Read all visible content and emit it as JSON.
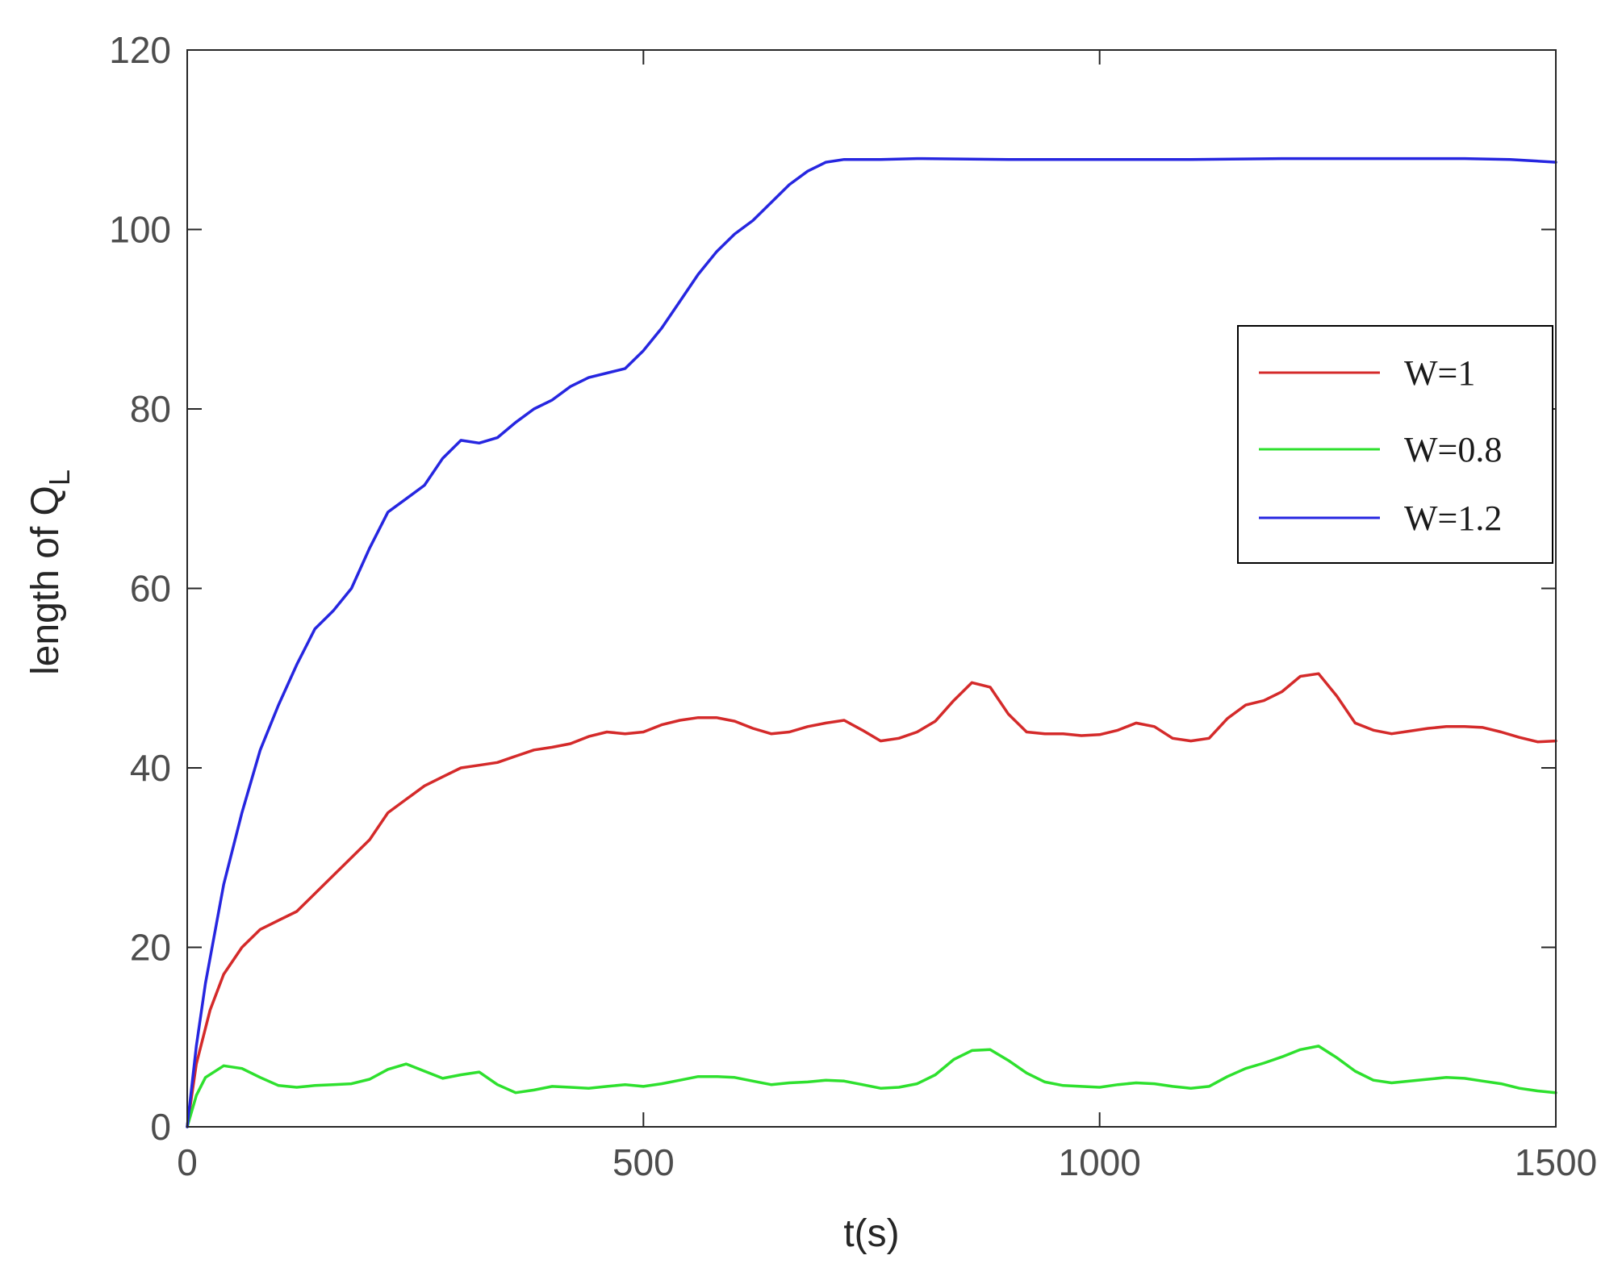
{
  "chart_data": {
    "type": "line",
    "xlabel": "t(s)",
    "ylabel_main": "length of Q",
    "ylabel_sub": "L",
    "xlim": [
      0,
      1500
    ],
    "ylim": [
      0,
      120
    ],
    "xticks": [
      0,
      500,
      1000,
      1500
    ],
    "yticks": [
      0,
      20,
      40,
      60,
      80,
      100,
      120
    ],
    "grid": false,
    "legend_position": "right, upper-middle",
    "series": [
      {
        "name": "W=1",
        "color": "#d42a2a",
        "points": [
          [
            0,
            0
          ],
          [
            10,
            7
          ],
          [
            25,
            13
          ],
          [
            40,
            17
          ],
          [
            60,
            20
          ],
          [
            80,
            22
          ],
          [
            100,
            23
          ],
          [
            120,
            24
          ],
          [
            140,
            26
          ],
          [
            160,
            28
          ],
          [
            180,
            30
          ],
          [
            200,
            32
          ],
          [
            220,
            35
          ],
          [
            240,
            36.5
          ],
          [
            260,
            38
          ],
          [
            280,
            39
          ],
          [
            300,
            40
          ],
          [
            320,
            40.3
          ],
          [
            340,
            40.6
          ],
          [
            360,
            41.3
          ],
          [
            380,
            42
          ],
          [
            400,
            42.3
          ],
          [
            420,
            42.7
          ],
          [
            440,
            43.5
          ],
          [
            460,
            44
          ],
          [
            480,
            43.8
          ],
          [
            500,
            44
          ],
          [
            520,
            44.8
          ],
          [
            540,
            45.3
          ],
          [
            560,
            45.6
          ],
          [
            580,
            45.6
          ],
          [
            600,
            45.2
          ],
          [
            620,
            44.4
          ],
          [
            640,
            43.8
          ],
          [
            660,
            44
          ],
          [
            680,
            44.6
          ],
          [
            700,
            45
          ],
          [
            720,
            45.3
          ],
          [
            740,
            44.2
          ],
          [
            760,
            43
          ],
          [
            780,
            43.3
          ],
          [
            800,
            44
          ],
          [
            820,
            45.2
          ],
          [
            840,
            47.5
          ],
          [
            860,
            49.5
          ],
          [
            880,
            49
          ],
          [
            900,
            46
          ],
          [
            920,
            44
          ],
          [
            940,
            43.8
          ],
          [
            960,
            43.8
          ],
          [
            980,
            43.6
          ],
          [
            1000,
            43.7
          ],
          [
            1020,
            44.2
          ],
          [
            1040,
            45
          ],
          [
            1060,
            44.6
          ],
          [
            1080,
            43.3
          ],
          [
            1100,
            43
          ],
          [
            1120,
            43.3
          ],
          [
            1140,
            45.5
          ],
          [
            1160,
            47
          ],
          [
            1180,
            47.5
          ],
          [
            1200,
            48.5
          ],
          [
            1220,
            50.2
          ],
          [
            1240,
            50.5
          ],
          [
            1260,
            48
          ],
          [
            1280,
            45
          ],
          [
            1300,
            44.2
          ],
          [
            1320,
            43.8
          ],
          [
            1340,
            44.1
          ],
          [
            1360,
            44.4
          ],
          [
            1380,
            44.6
          ],
          [
            1400,
            44.6
          ],
          [
            1420,
            44.5
          ],
          [
            1440,
            44
          ],
          [
            1460,
            43.4
          ],
          [
            1480,
            42.9
          ],
          [
            1500,
            43
          ]
        ]
      },
      {
        "name": "W=0.8",
        "color": "#2ee02e",
        "points": [
          [
            0,
            0
          ],
          [
            10,
            3.5
          ],
          [
            20,
            5.5
          ],
          [
            40,
            6.8
          ],
          [
            60,
            6.5
          ],
          [
            80,
            5.5
          ],
          [
            100,
            4.6
          ],
          [
            120,
            4.4
          ],
          [
            140,
            4.6
          ],
          [
            160,
            4.7
          ],
          [
            180,
            4.8
          ],
          [
            200,
            5.3
          ],
          [
            220,
            6.4
          ],
          [
            240,
            7
          ],
          [
            260,
            6.2
          ],
          [
            280,
            5.4
          ],
          [
            300,
            5.8
          ],
          [
            320,
            6.1
          ],
          [
            340,
            4.7
          ],
          [
            360,
            3.8
          ],
          [
            380,
            4.1
          ],
          [
            400,
            4.5
          ],
          [
            420,
            4.4
          ],
          [
            440,
            4.3
          ],
          [
            460,
            4.5
          ],
          [
            480,
            4.7
          ],
          [
            500,
            4.5
          ],
          [
            520,
            4.8
          ],
          [
            540,
            5.2
          ],
          [
            560,
            5.6
          ],
          [
            580,
            5.6
          ],
          [
            600,
            5.5
          ],
          [
            620,
            5.1
          ],
          [
            640,
            4.7
          ],
          [
            660,
            4.9
          ],
          [
            680,
            5
          ],
          [
            700,
            5.2
          ],
          [
            720,
            5.1
          ],
          [
            740,
            4.7
          ],
          [
            760,
            4.3
          ],
          [
            780,
            4.4
          ],
          [
            800,
            4.8
          ],
          [
            820,
            5.8
          ],
          [
            840,
            7.5
          ],
          [
            860,
            8.5
          ],
          [
            880,
            8.6
          ],
          [
            900,
            7.4
          ],
          [
            920,
            6
          ],
          [
            940,
            5
          ],
          [
            960,
            4.6
          ],
          [
            980,
            4.5
          ],
          [
            1000,
            4.4
          ],
          [
            1020,
            4.7
          ],
          [
            1040,
            4.9
          ],
          [
            1060,
            4.8
          ],
          [
            1080,
            4.5
          ],
          [
            1100,
            4.3
          ],
          [
            1120,
            4.5
          ],
          [
            1140,
            5.6
          ],
          [
            1160,
            6.5
          ],
          [
            1180,
            7.1
          ],
          [
            1200,
            7.8
          ],
          [
            1220,
            8.6
          ],
          [
            1240,
            9
          ],
          [
            1260,
            7.7
          ],
          [
            1280,
            6.2
          ],
          [
            1300,
            5.2
          ],
          [
            1320,
            4.9
          ],
          [
            1340,
            5.1
          ],
          [
            1360,
            5.3
          ],
          [
            1380,
            5.5
          ],
          [
            1400,
            5.4
          ],
          [
            1420,
            5.1
          ],
          [
            1440,
            4.8
          ],
          [
            1460,
            4.3
          ],
          [
            1480,
            4
          ],
          [
            1500,
            3.8
          ]
        ]
      },
      {
        "name": "W=1.2",
        "color": "#2626e0",
        "points": [
          [
            0,
            0
          ],
          [
            10,
            9
          ],
          [
            20,
            16
          ],
          [
            40,
            27
          ],
          [
            60,
            35
          ],
          [
            80,
            42
          ],
          [
            100,
            47
          ],
          [
            120,
            51.5
          ],
          [
            140,
            55.5
          ],
          [
            160,
            57.5
          ],
          [
            180,
            60
          ],
          [
            200,
            64.5
          ],
          [
            220,
            68.5
          ],
          [
            240,
            70
          ],
          [
            260,
            71.5
          ],
          [
            280,
            74.5
          ],
          [
            300,
            76.5
          ],
          [
            320,
            76.2
          ],
          [
            340,
            76.8
          ],
          [
            360,
            78.5
          ],
          [
            380,
            80
          ],
          [
            400,
            81
          ],
          [
            420,
            82.5
          ],
          [
            440,
            83.5
          ],
          [
            460,
            84
          ],
          [
            480,
            84.5
          ],
          [
            500,
            86.5
          ],
          [
            520,
            89
          ],
          [
            540,
            92
          ],
          [
            560,
            95
          ],
          [
            580,
            97.5
          ],
          [
            600,
            99.5
          ],
          [
            620,
            101
          ],
          [
            640,
            103
          ],
          [
            660,
            105
          ],
          [
            680,
            106.5
          ],
          [
            700,
            107.5
          ],
          [
            720,
            107.8
          ],
          [
            760,
            107.8
          ],
          [
            800,
            107.9
          ],
          [
            900,
            107.8
          ],
          [
            1000,
            107.8
          ],
          [
            1100,
            107.8
          ],
          [
            1200,
            107.9
          ],
          [
            1300,
            107.9
          ],
          [
            1400,
            107.9
          ],
          [
            1450,
            107.8
          ],
          [
            1500,
            107.5
          ]
        ]
      }
    ]
  }
}
